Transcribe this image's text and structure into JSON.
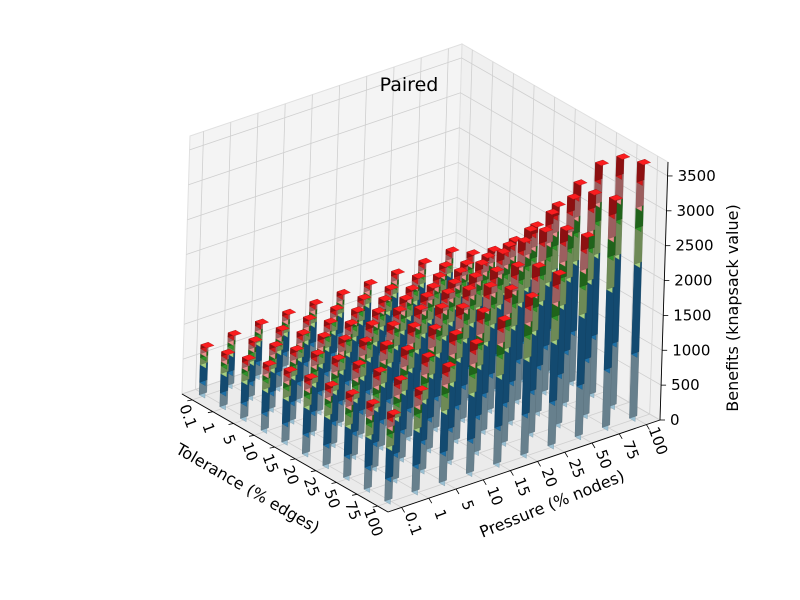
{
  "chart_data": {
    "type": "bar3d",
    "title": "Paired",
    "xlabel": "Tolerance (% edges)",
    "ylabel": "Pressure (% nodes)",
    "zlabel": "Benefits (knapsack value)",
    "x_categories": [
      "0.1",
      "1",
      "5",
      "10",
      "15",
      "20",
      "25",
      "50",
      "75",
      "100"
    ],
    "y_categories": [
      "0.1",
      "1",
      "5",
      "10",
      "15",
      "20",
      "25",
      "50",
      "75",
      "100"
    ],
    "zlim": [
      0,
      3700
    ],
    "z_ticks": [
      "0",
      "500",
      "1000",
      "1500",
      "2000",
      "2500",
      "3000",
      "3500"
    ],
    "grid": true,
    "stack_colors": [
      "#a6cee3",
      "#1f78b4",
      "#b2df8a",
      "#33a02c",
      "#fb9a99",
      "#e31a1c"
    ],
    "stack_fractions": [
      0.25,
      0.35,
      0.14,
      0.08,
      0.1,
      0.08
    ],
    "series_totals": [
      [
        720,
        760,
        790,
        800,
        810,
        820,
        830,
        850,
        870,
        900
      ],
      [
        790,
        840,
        870,
        890,
        900,
        920,
        930,
        960,
        990,
        1030
      ],
      [
        880,
        940,
        980,
        1010,
        1040,
        1070,
        1090,
        1140,
        1190,
        1250
      ],
      [
        970,
        1050,
        1110,
        1160,
        1200,
        1250,
        1290,
        1380,
        1460,
        1560
      ],
      [
        1050,
        1160,
        1240,
        1320,
        1390,
        1460,
        1520,
        1660,
        1790,
        1940
      ],
      [
        1120,
        1260,
        1380,
        1480,
        1580,
        1680,
        1780,
        1990,
        2180,
        2400
      ],
      [
        1180,
        1350,
        1500,
        1630,
        1770,
        1900,
        2030,
        2320,
        2590,
        2880
      ],
      [
        1230,
        1420,
        1600,
        1770,
        1940,
        2110,
        2270,
        2640,
        2980,
        3330
      ],
      [
        1260,
        1470,
        1670,
        1860,
        2050,
        2240,
        2430,
        2830,
        3210,
        3590
      ],
      [
        1280,
        1490,
        1700,
        1900,
        2100,
        2300,
        2490,
        2900,
        3300,
        3680
      ]
    ]
  }
}
